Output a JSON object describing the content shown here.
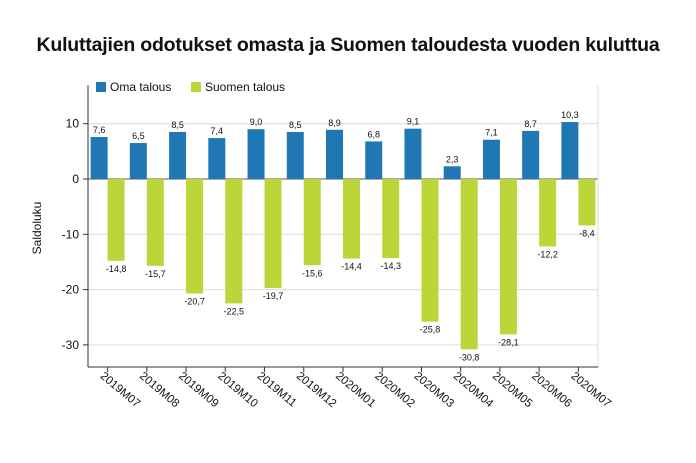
{
  "chart_data": {
    "type": "bar",
    "title": "Kuluttajien odotukset omasta ja Suomen taloudesta vuoden kuluttua",
    "ylabel": "Saldoluku",
    "xlabel": "",
    "ylim": [
      -34,
      17
    ],
    "yticks": [
      10,
      0,
      -10,
      -20,
      -30
    ],
    "grid": true,
    "legend_position": "top-left",
    "categories": [
      "2019M07",
      "2019M08",
      "2019M09",
      "2019M10",
      "2019M11",
      "2019M12",
      "2020M01",
      "2020M02",
      "2020M03",
      "2020M04",
      "2020M05",
      "2020M06",
      "2020M07"
    ],
    "series": [
      {
        "name": "Oma talous",
        "color": "#1f77b4",
        "values": [
          7.6,
          6.5,
          8.5,
          7.4,
          9.0,
          8.5,
          8.9,
          6.8,
          9.1,
          2.3,
          7.1,
          8.7,
          10.3
        ],
        "labels": [
          "7,6",
          "6,5",
          "8,5",
          "7,4",
          "9,0",
          "8,5",
          "8,9",
          "6,8",
          "9,1",
          "2,3",
          "7,1",
          "8,7",
          "10,3"
        ]
      },
      {
        "name": "Suomen talous",
        "color": "#bcd63a",
        "values": [
          -14.8,
          -15.7,
          -20.7,
          -22.5,
          -19.7,
          -15.6,
          -14.4,
          -14.3,
          -25.8,
          -30.8,
          -28.1,
          -12.2,
          -8.4
        ],
        "labels": [
          "-14,8",
          "-15,7",
          "-20,7",
          "-22,5",
          "-19,7",
          "-15,6",
          "-14,4",
          "-14,3",
          "-25,8",
          "-30,8",
          "-28,1",
          "-12,2",
          "-8,4"
        ]
      }
    ]
  }
}
